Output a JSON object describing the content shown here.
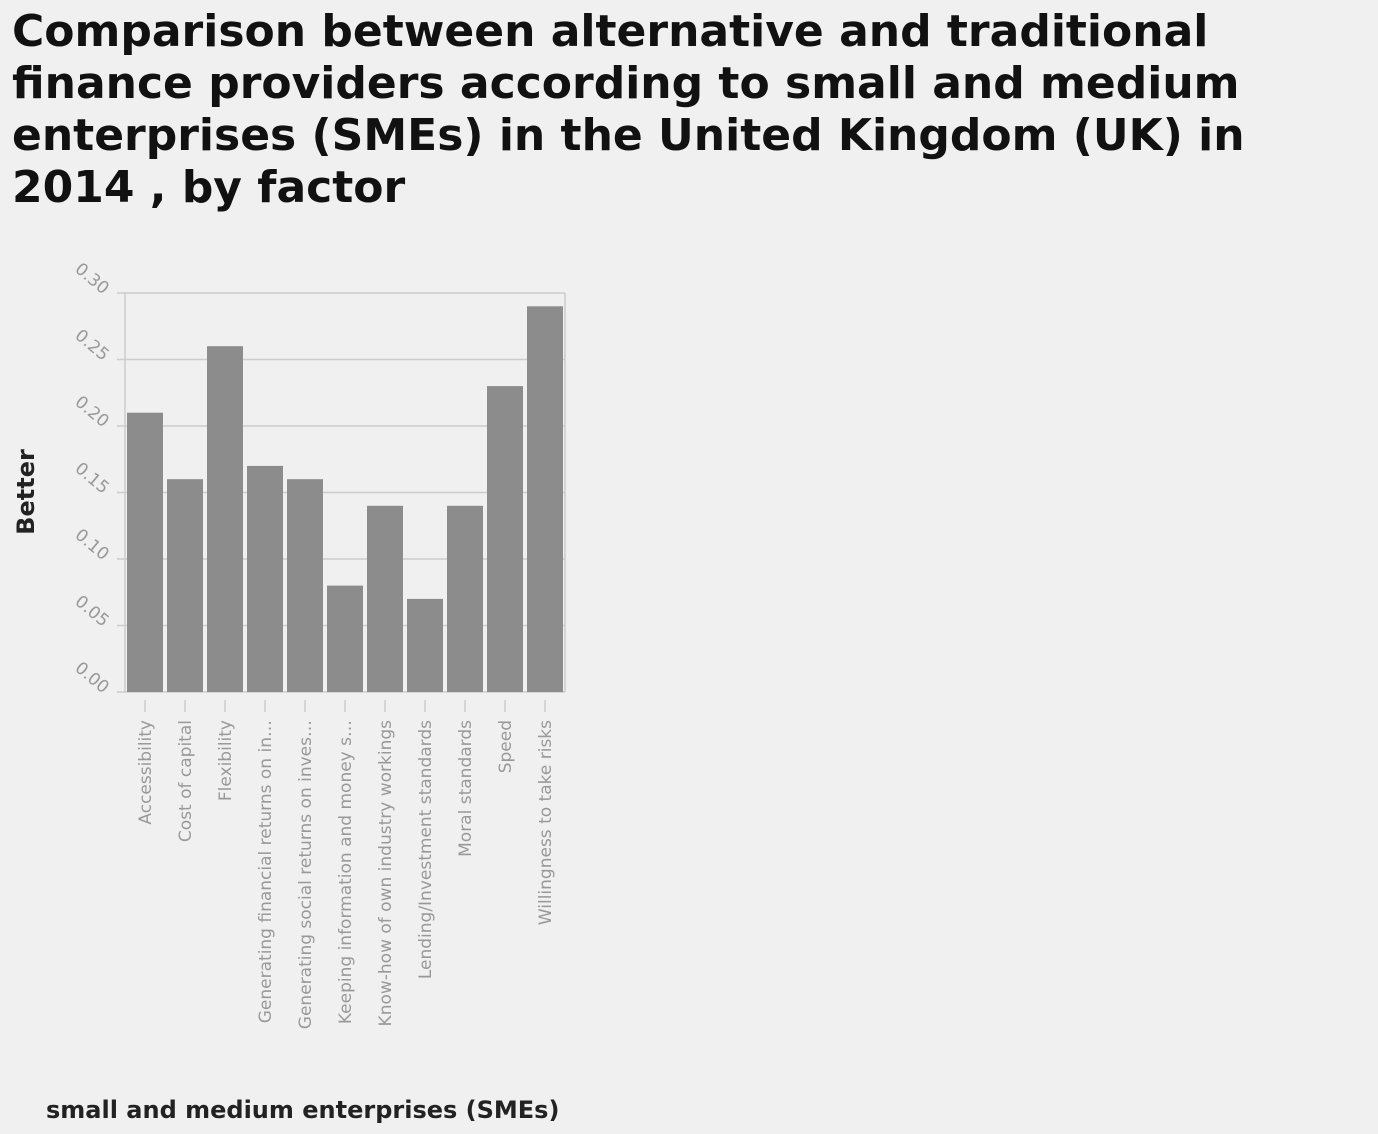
{
  "chart_data": {
    "type": "bar",
    "title": "Comparison between alternative and traditional finance providers according to small and medium enterprises (SMEs) in the United Kingdom (UK) in 2014 , by factor",
    "xlabel": "small and medium enterprises (SMEs)",
    "ylabel": "Better",
    "categories": [
      "Accessibility",
      "Cost of capital",
      "Flexibility",
      "Generating financial returns on in…",
      "Generating social returns on inves…",
      "Keeping information and money s…",
      "Know-how of own industry workings",
      "Lending/Investment standards",
      "Moral standards",
      "Speed",
      "Willingness to take risks"
    ],
    "values": [
      0.21,
      0.16,
      0.26,
      0.17,
      0.16,
      0.08,
      0.14,
      0.07,
      0.14,
      0.23,
      0.29
    ],
    "ylim": [
      0,
      0.3
    ],
    "yticks": [
      "0.00",
      "0.05",
      "0.10",
      "0.15",
      "0.20",
      "0.25",
      "0.30"
    ],
    "grid": true,
    "legend": "none",
    "colors": {
      "bar": "#8c8c8c",
      "grid": "#cccccc",
      "background": "#f0f0f0",
      "tick_text": "#999999"
    }
  }
}
